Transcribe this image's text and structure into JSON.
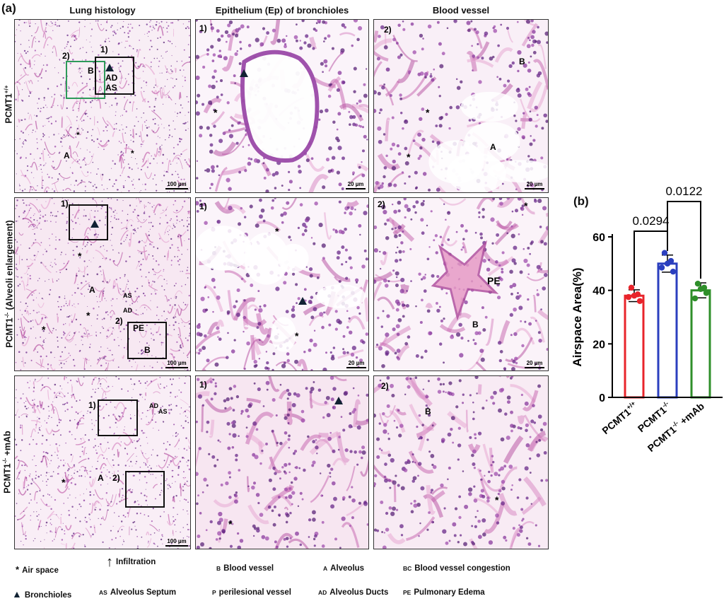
{
  "panel_a": {
    "label": "(a)",
    "columns": [
      "Lung histology",
      "Epithelium (Ep) of bronchioles",
      "Blood vessel"
    ],
    "rows": [
      {
        "label_html_base": "PCMT1",
        "label_sup": "+/+",
        "label_suffix": "",
        "tiles": [
          {
            "markers": [
              "2)",
              "1)",
              "B",
              "AD",
              "AS",
              "*",
              "*",
              "A"
            ],
            "scale": "100 µm"
          },
          {
            "markers": [
              "1)",
              "*"
            ],
            "scale": "20 µm"
          },
          {
            "markers": [
              "2)",
              "B",
              "*",
              "*",
              "A"
            ],
            "scale": "20 µm"
          }
        ]
      },
      {
        "label_html_base": "PCMT1",
        "label_sup": "-/-",
        "label_suffix": " (Alveoli enlargement)",
        "tiles": [
          {
            "markers": [
              "1)",
              "*",
              "A",
              "AS",
              "*",
              "AD",
              "*",
              "2)",
              "PE",
              "B"
            ],
            "scale": "100 µm"
          },
          {
            "markers": [
              "1)",
              "*",
              "*"
            ],
            "scale": "20 µm"
          },
          {
            "markers": [
              "2)",
              "*",
              "PE",
              "B"
            ],
            "scale": "20 µm"
          }
        ]
      },
      {
        "label_html_base": "PCMT1",
        "label_sup": "-/-",
        "label_suffix": " +mAb",
        "tiles": [
          {
            "markers": [
              "1)",
              "AD",
              "AS",
              "*",
              "A",
              "2)"
            ],
            "scale": "100 µm"
          },
          {
            "markers": [
              "1)",
              "*"
            ],
            "scale": ""
          },
          {
            "markers": [
              "2)",
              "B",
              "*"
            ],
            "scale": ""
          }
        ]
      }
    ]
  },
  "legend": [
    {
      "code": "*",
      "text": "Air space"
    },
    {
      "code": "↑",
      "text": "Infiltration"
    },
    {
      "code": "B",
      "text": "Blood vessel"
    },
    {
      "code": "A",
      "text": "Alveolus"
    },
    {
      "code": "BC",
      "text": "Blood vessel congestion"
    },
    {
      "code": "▲",
      "text": "Bronchioles"
    },
    {
      "code": "AS",
      "text": "Alveolus Septum"
    },
    {
      "code": "P",
      "text": "perilesional vessel"
    },
    {
      "code": "AD",
      "text": "Alveolus Ducts"
    },
    {
      "code": "PE",
      "text": "Pulmonary Edema"
    }
  ],
  "chart_data": {
    "panel_label": "(b)",
    "type": "bar",
    "categories": [
      {
        "base": "PCMT1",
        "sup": "+/+",
        "suffix": ""
      },
      {
        "base": "PCMT1",
        "sup": "-/-",
        "suffix": ""
      },
      {
        "base": "PCMT1",
        "sup": "-/-",
        "suffix": " +mAb"
      }
    ],
    "values": [
      38,
      50,
      40
    ],
    "errors": [
      2.2,
      3.2,
      2.8
    ],
    "points": [
      [
        41,
        38.5,
        37.5,
        36,
        38
      ],
      [
        54,
        51,
        48.5,
        47,
        50
      ],
      [
        42.5,
        41,
        37,
        39,
        40.5
      ]
    ],
    "colors": [
      "#e8242b",
      "#2b3fbf",
      "#2f8f2a"
    ],
    "ylabel": "Airspace Area(%)",
    "ylim": [
      0,
      60
    ],
    "yticks": [
      0,
      20,
      40,
      60
    ],
    "significance": [
      {
        "from": 0,
        "to": 1,
        "label": "0.0294"
      },
      {
        "from": 1,
        "to": 2,
        "label": "0.0122"
      }
    ]
  }
}
